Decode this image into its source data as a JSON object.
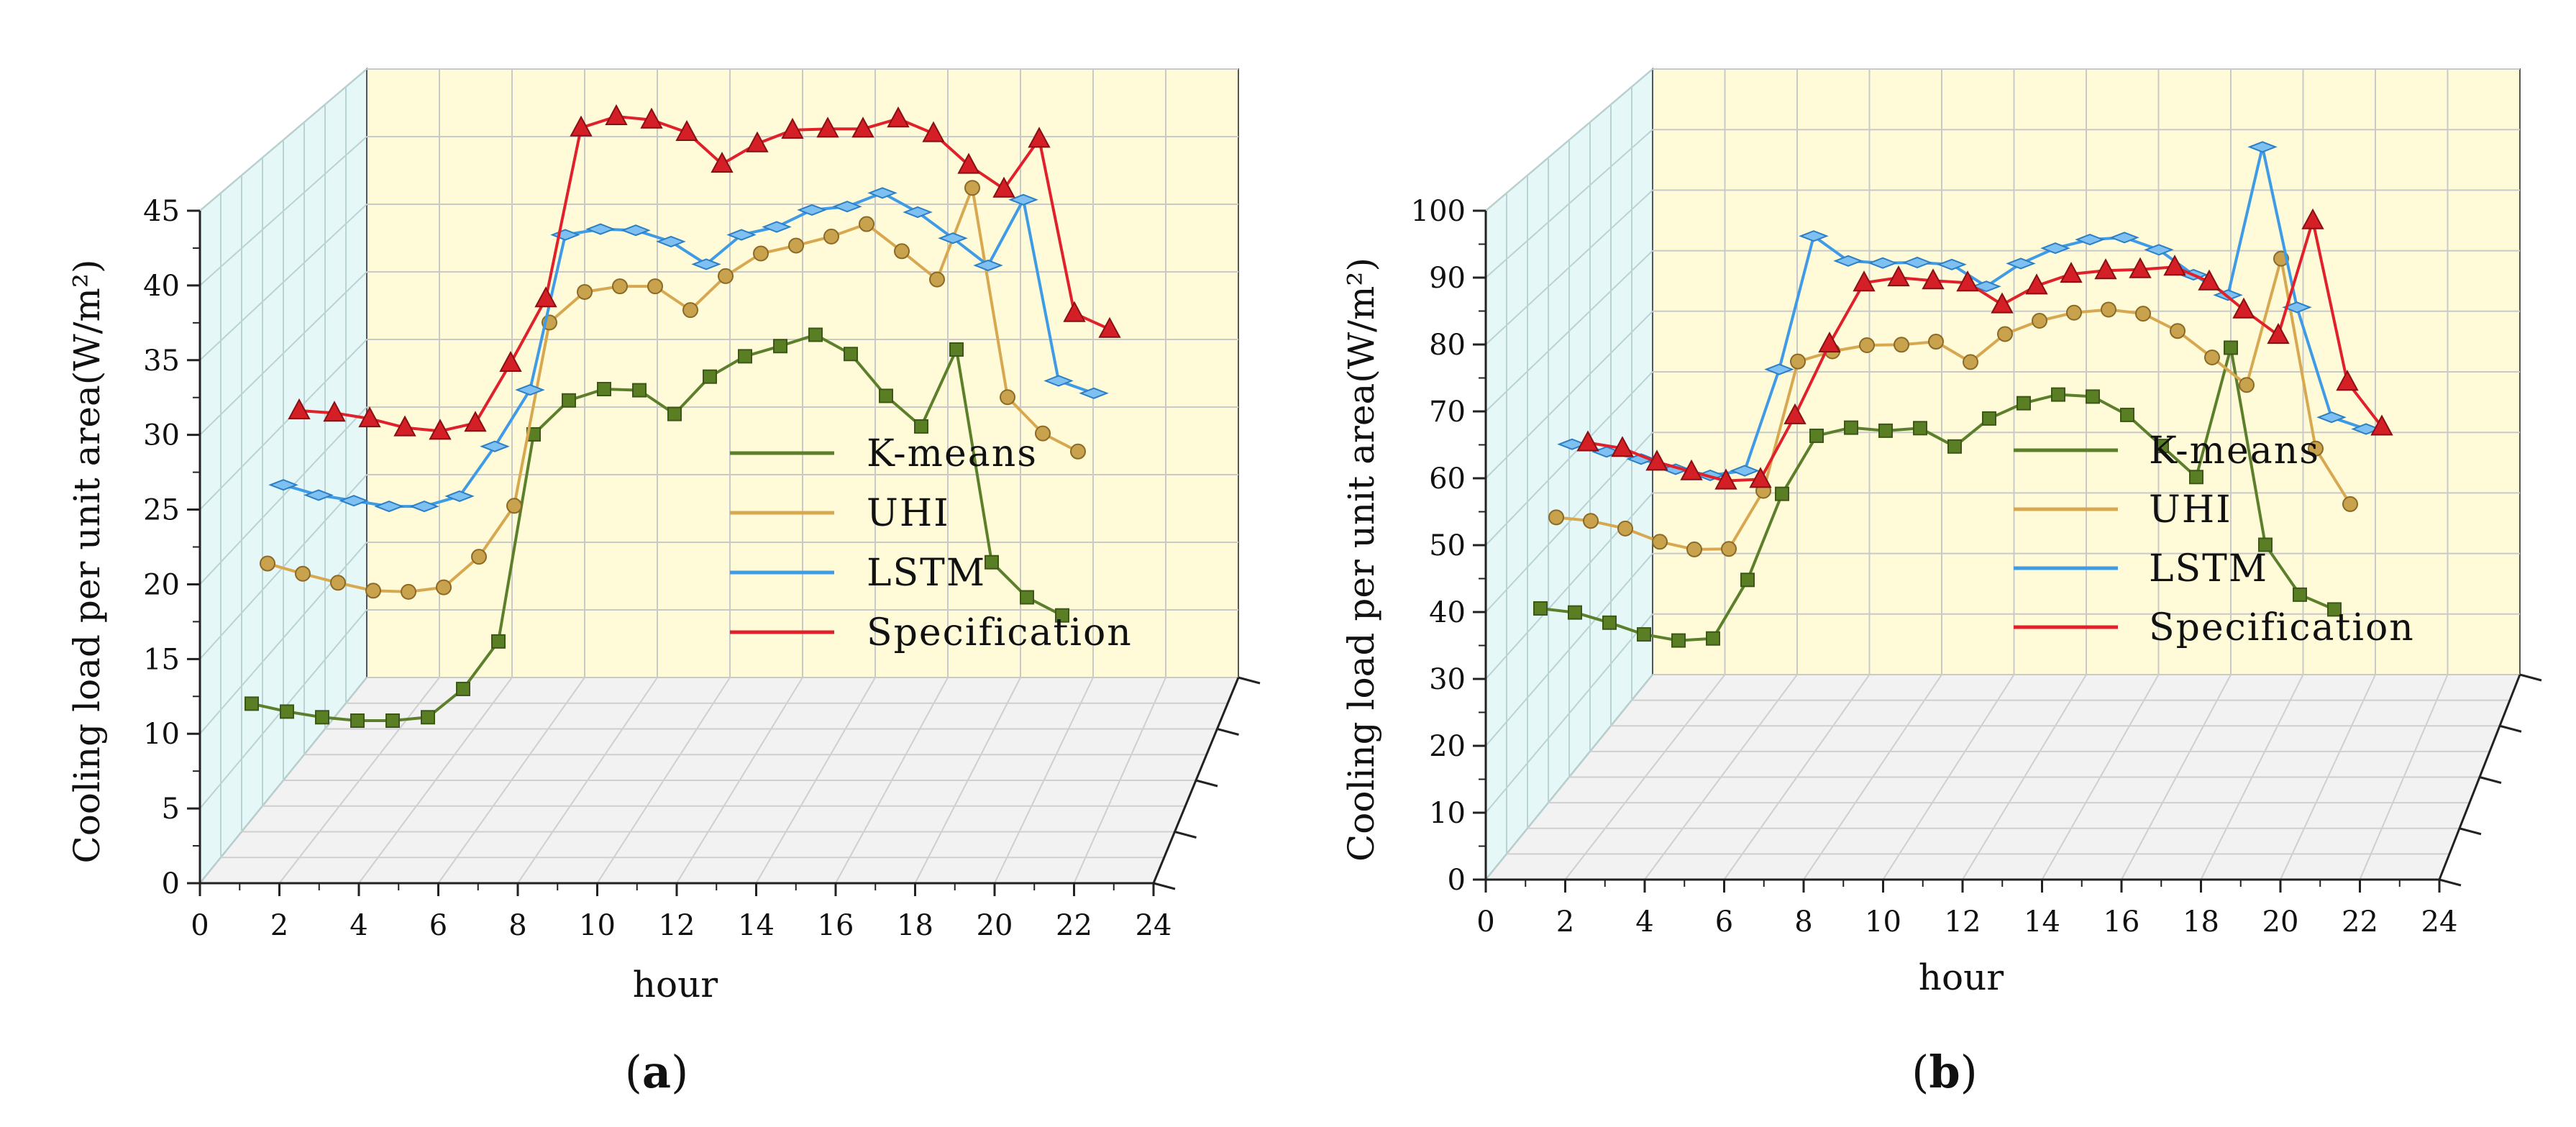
{
  "charts": [
    {
      "panel_label": "a",
      "chart_data": {
        "type": "line",
        "style": "3d-wall",
        "xlabel": "hour",
        "ylabel": "Cooling load per unit area(W/m²)",
        "xlim": [
          0,
          24
        ],
        "ylim": [
          0,
          45
        ],
        "xticks": [
          0,
          2,
          4,
          6,
          8,
          10,
          12,
          14,
          16,
          18,
          20,
          22,
          24
        ],
        "yticks": [
          0,
          5,
          10,
          15,
          20,
          25,
          30,
          35,
          40,
          45
        ],
        "legend_position": "center-right",
        "x": [
          1,
          2,
          3,
          4,
          5,
          6,
          7,
          8,
          9,
          10,
          11,
          12,
          13,
          14,
          15,
          16,
          17,
          18,
          19,
          20,
          21,
          22,
          23,
          24
        ],
        "series": [
          {
            "name": "K-means",
            "color": "#5b7f2a",
            "marker": "square",
            "values": [
              9.0,
              8.3,
              7.8,
              7.5,
              7.5,
              7.8,
              10.3,
              14.5,
              32.8,
              35.8,
              36.8,
              36.7,
              34.6,
              37.9,
              39.7,
              40.6,
              41.6,
              39.9,
              36.2,
              33.5,
              40.3,
              21.5,
              18.4,
              16.8
            ]
          },
          {
            "name": "UHI",
            "color": "#d8a851",
            "marker": "sphere",
            "values": [
              16.3,
              15.4,
              14.6,
              13.9,
              13.8,
              14.2,
              16.9,
              21.4,
              37.6,
              40.3,
              40.8,
              40.8,
              38.7,
              41.7,
              43.7,
              44.4,
              45.2,
              46.3,
              43.9,
              41.4,
              49.5,
              31.0,
              27.8,
              26.2
            ]
          },
          {
            "name": "LSTM",
            "color": "#3f9be6",
            "marker": "diamond",
            "values": [
              18.8,
              17.9,
              17.4,
              16.9,
              16.9,
              17.8,
              22.2,
              27.2,
              40.9,
              41.4,
              41.3,
              40.3,
              38.3,
              40.9,
              41.6,
              43.1,
              43.4,
              44.6,
              42.9,
              40.6,
              38.2,
              44.0,
              28.0,
              26.9
            ]
          },
          {
            "name": "Specification",
            "color": "#e0202a",
            "marker": "triangle",
            "values": [
              20.4,
              20.2,
              19.7,
              18.9,
              18.6,
              19.3,
              24.6,
              30.3,
              45.4,
              46.4,
              46.1,
              45.0,
              42.2,
              44.0,
              45.2,
              45.3,
              45.3,
              46.2,
              44.9,
              42.1,
              40.0,
              44.4,
              29.0,
              27.6
            ]
          }
        ]
      }
    },
    {
      "panel_label": "b",
      "chart_data": {
        "type": "line",
        "style": "3d-wall",
        "xlabel": "hour",
        "ylabel": "Cooling load per unit area(W/m²)",
        "xlim": [
          0,
          24
        ],
        "ylim": [
          0,
          100
        ],
        "xticks": [
          0,
          2,
          4,
          6,
          8,
          10,
          12,
          14,
          16,
          18,
          20,
          22,
          24
        ],
        "yticks": [
          0,
          10,
          20,
          30,
          40,
          50,
          60,
          70,
          80,
          90,
          100
        ],
        "legend_position": "center-right",
        "x": [
          1,
          2,
          3,
          4,
          5,
          6,
          7,
          8,
          9,
          10,
          11,
          12,
          13,
          14,
          15,
          16,
          17,
          18,
          19,
          20,
          21,
          22,
          23,
          24
        ],
        "series": [
          {
            "name": "K-means",
            "color": "#5b7f2a",
            "marker": "square",
            "values": [
              38.0,
              37.2,
              35.2,
              32.9,
              31.7,
              32.1,
              43.6,
              60.5,
              71.9,
              73.5,
              72.9,
              73.4,
              69.8,
              75.3,
              78.3,
              80.0,
              79.6,
              76.0,
              69.9,
              63.8,
              89.2,
              50.5,
              40.7,
              37.8
            ]
          },
          {
            "name": "UHI",
            "color": "#d8a851",
            "marker": "sphere",
            "values": [
              46.0,
              45.3,
              43.8,
              41.2,
              39.7,
              39.8,
              51.2,
              76.6,
              78.6,
              79.8,
              79.9,
              80.5,
              76.5,
              82.0,
              84.6,
              86.2,
              86.8,
              86.0,
              82.6,
              77.4,
              72.0,
              96.8,
              59.5,
              48.6
            ]
          },
          {
            "name": "LSTM",
            "color": "#3f9be6",
            "marker": "diamond",
            "values": [
              54.7,
              53.2,
              51.8,
              49.8,
              48.6,
              49.5,
              69.4,
              95.6,
              90.7,
              90.3,
              90.4,
              90.0,
              85.7,
              90.2,
              93.2,
              94.9,
              95.3,
              92.9,
              88.0,
              84.0,
              113.1,
              81.6,
              60.0,
              57.7
            ]
          },
          {
            "name": "Specification",
            "color": "#e0202a",
            "marker": "triangle",
            "values": [
              52.9,
              51.8,
              49.1,
              47.2,
              45.4,
              45.7,
              58.2,
              72.3,
              84.3,
              85.3,
              84.7,
              84.3,
              80.0,
              83.7,
              86.0,
              86.7,
              86.9,
              87.4,
              84.5,
              79.0,
              74.0,
              96.5,
              64.8,
              56.0
            ]
          }
        ]
      }
    }
  ]
}
